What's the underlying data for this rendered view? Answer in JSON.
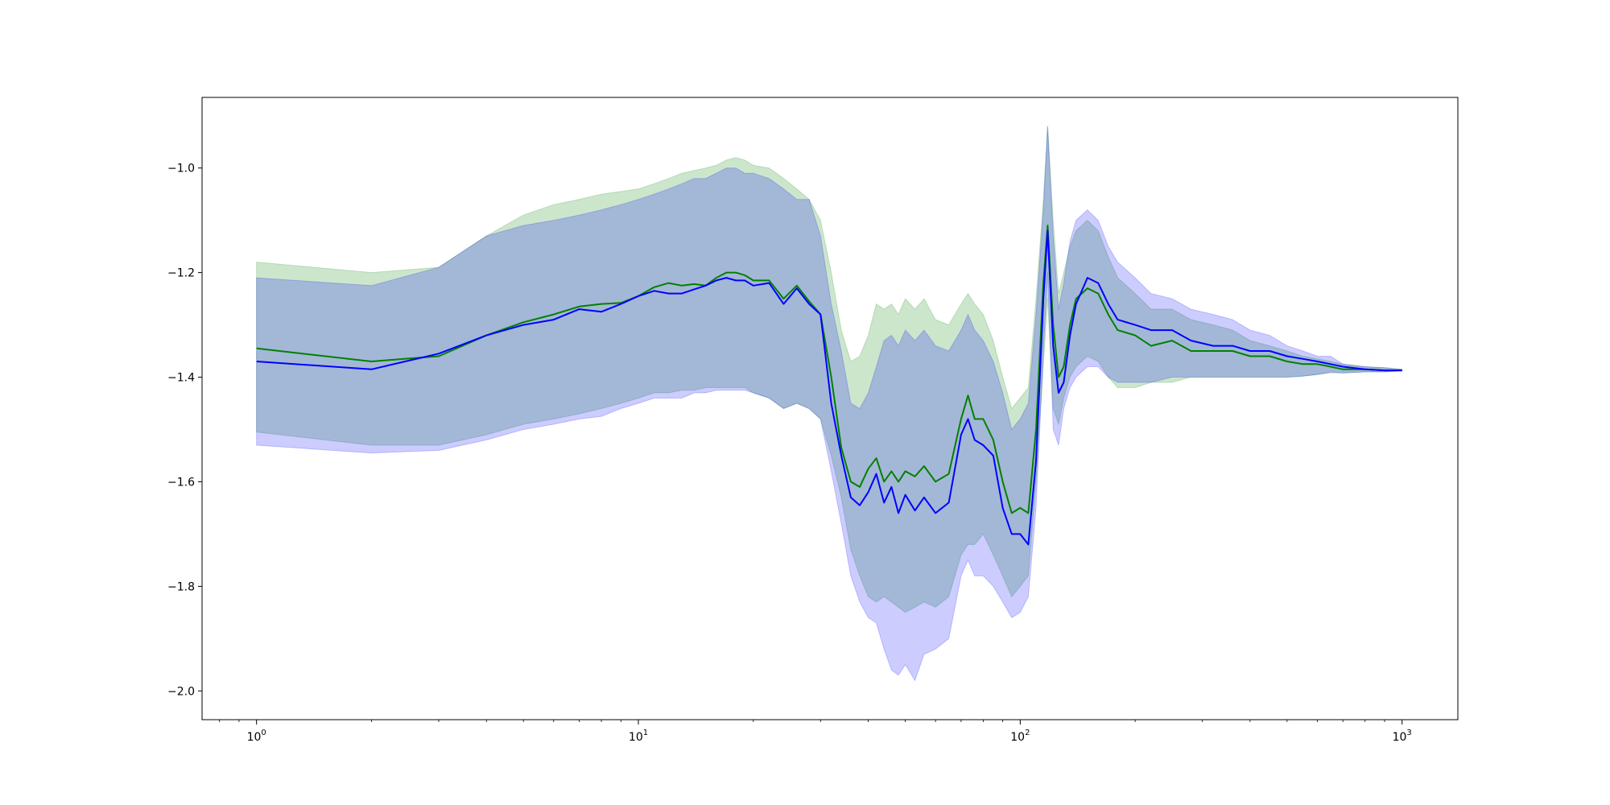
{
  "chart_data": {
    "type": "line",
    "title": "",
    "xlabel": "",
    "ylabel": "",
    "x_scale": "log",
    "xlim": [
      0.72,
      1400
    ],
    "ylim": [
      -2.055,
      -0.865
    ],
    "grid": false,
    "y_ticks": [
      -2.0,
      -1.8,
      -1.6,
      -1.4,
      -1.2,
      -1.0
    ],
    "y_tick_labels": [
      "−2.0",
      "−1.8",
      "−1.6",
      "−1.4",
      "−1.2",
      "−1.0"
    ],
    "x_ticks": [
      {
        "value": 1,
        "base": "10",
        "exp": "0"
      },
      {
        "value": 10,
        "base": "10",
        "exp": "1"
      },
      {
        "value": 100,
        "base": "10",
        "exp": "2"
      },
      {
        "value": 1000,
        "base": "10",
        "exp": "3"
      }
    ],
    "x": [
      1,
      2,
      3,
      4,
      5,
      6,
      7,
      8,
      9,
      10,
      11,
      12,
      13,
      14,
      15,
      16,
      17,
      18,
      19,
      20,
      22,
      24,
      26,
      28,
      30,
      32,
      34,
      36,
      38,
      40,
      42,
      44,
      46,
      48,
      50,
      53,
      56,
      60,
      65,
      70,
      73,
      76,
      80,
      85,
      90,
      95,
      100,
      105,
      110,
      115,
      118,
      122,
      126,
      130,
      135,
      140,
      150,
      160,
      170,
      180,
      200,
      220,
      250,
      280,
      320,
      360,
      400,
      450,
      500,
      550,
      600,
      650,
      700,
      800,
      900,
      1000
    ],
    "series": [
      {
        "color": "#008000",
        "band_color": "#008000",
        "band_opacity": 0.2,
        "values": [
          -1.345,
          -1.37,
          -1.36,
          -1.32,
          -1.295,
          -1.28,
          -1.265,
          -1.26,
          -1.258,
          -1.245,
          -1.228,
          -1.22,
          -1.225,
          -1.222,
          -1.225,
          -1.21,
          -1.2,
          -1.2,
          -1.205,
          -1.215,
          -1.215,
          -1.25,
          -1.225,
          -1.255,
          -1.28,
          -1.4,
          -1.535,
          -1.6,
          -1.61,
          -1.575,
          -1.555,
          -1.6,
          -1.58,
          -1.6,
          -1.58,
          -1.59,
          -1.57,
          -1.6,
          -1.585,
          -1.48,
          -1.435,
          -1.48,
          -1.48,
          -1.52,
          -1.6,
          -1.66,
          -1.65,
          -1.66,
          -1.5,
          -1.22,
          -1.11,
          -1.3,
          -1.4,
          -1.38,
          -1.3,
          -1.25,
          -1.23,
          -1.24,
          -1.28,
          -1.31,
          -1.32,
          -1.34,
          -1.33,
          -1.35,
          -1.35,
          -1.35,
          -1.36,
          -1.36,
          -1.37,
          -1.375,
          -1.375,
          -1.38,
          -1.385,
          -1.385,
          -1.387,
          -1.387
        ],
        "lower": [
          -1.505,
          -1.53,
          -1.53,
          -1.51,
          -1.49,
          -1.48,
          -1.47,
          -1.46,
          -1.45,
          -1.44,
          -1.43,
          -1.43,
          -1.425,
          -1.425,
          -1.42,
          -1.42,
          -1.42,
          -1.42,
          -1.42,
          -1.43,
          -1.44,
          -1.46,
          -1.45,
          -1.46,
          -1.48,
          -1.55,
          -1.63,
          -1.73,
          -1.78,
          -1.82,
          -1.83,
          -1.82,
          -1.83,
          -1.84,
          -1.85,
          -1.84,
          -1.83,
          -1.84,
          -1.82,
          -1.74,
          -1.72,
          -1.72,
          -1.7,
          -1.74,
          -1.78,
          -1.82,
          -1.8,
          -1.78,
          -1.6,
          -1.38,
          -1.25,
          -1.46,
          -1.49,
          -1.44,
          -1.4,
          -1.38,
          -1.36,
          -1.37,
          -1.4,
          -1.42,
          -1.42,
          -1.41,
          -1.41,
          -1.4,
          -1.4,
          -1.4,
          -1.4,
          -1.4,
          -1.4,
          -1.398,
          -1.395,
          -1.392,
          -1.392,
          -1.39,
          -1.39,
          -1.388
        ],
        "upper": [
          -1.18,
          -1.2,
          -1.19,
          -1.13,
          -1.09,
          -1.07,
          -1.06,
          -1.05,
          -1.045,
          -1.04,
          -1.03,
          -1.02,
          -1.01,
          -1.005,
          -1.0,
          -0.995,
          -0.985,
          -0.98,
          -0.985,
          -0.995,
          -1.0,
          -1.02,
          -1.04,
          -1.06,
          -1.1,
          -1.2,
          -1.31,
          -1.37,
          -1.36,
          -1.32,
          -1.26,
          -1.27,
          -1.26,
          -1.28,
          -1.25,
          -1.27,
          -1.25,
          -1.29,
          -1.3,
          -1.26,
          -1.24,
          -1.26,
          -1.28,
          -1.33,
          -1.4,
          -1.46,
          -1.44,
          -1.42,
          -1.25,
          -1.06,
          -0.92,
          -1.1,
          -1.24,
          -1.2,
          -1.15,
          -1.12,
          -1.1,
          -1.12,
          -1.17,
          -1.21,
          -1.24,
          -1.27,
          -1.27,
          -1.29,
          -1.3,
          -1.31,
          -1.33,
          -1.34,
          -1.35,
          -1.36,
          -1.365,
          -1.37,
          -1.375,
          -1.38,
          -1.382,
          -1.385
        ]
      },
      {
        "color": "#0000ff",
        "band_color": "#0000ff",
        "band_opacity": 0.2,
        "values": [
          -1.37,
          -1.385,
          -1.355,
          -1.32,
          -1.3,
          -1.29,
          -1.27,
          -1.275,
          -1.26,
          -1.245,
          -1.235,
          -1.24,
          -1.24,
          -1.232,
          -1.225,
          -1.215,
          -1.21,
          -1.215,
          -1.215,
          -1.225,
          -1.22,
          -1.26,
          -1.23,
          -1.26,
          -1.28,
          -1.45,
          -1.55,
          -1.63,
          -1.645,
          -1.62,
          -1.585,
          -1.64,
          -1.61,
          -1.66,
          -1.625,
          -1.655,
          -1.63,
          -1.66,
          -1.64,
          -1.51,
          -1.48,
          -1.52,
          -1.53,
          -1.55,
          -1.65,
          -1.7,
          -1.7,
          -1.72,
          -1.56,
          -1.25,
          -1.12,
          -1.34,
          -1.43,
          -1.41,
          -1.32,
          -1.26,
          -1.21,
          -1.22,
          -1.26,
          -1.29,
          -1.3,
          -1.31,
          -1.31,
          -1.33,
          -1.34,
          -1.34,
          -1.35,
          -1.35,
          -1.36,
          -1.365,
          -1.37,
          -1.375,
          -1.38,
          -1.385,
          -1.387,
          -1.387
        ],
        "lower": [
          -1.53,
          -1.545,
          -1.54,
          -1.52,
          -1.5,
          -1.49,
          -1.48,
          -1.475,
          -1.46,
          -1.45,
          -1.44,
          -1.44,
          -1.44,
          -1.43,
          -1.43,
          -1.425,
          -1.425,
          -1.425,
          -1.425,
          -1.43,
          -1.44,
          -1.46,
          -1.45,
          -1.46,
          -1.48,
          -1.58,
          -1.68,
          -1.78,
          -1.83,
          -1.86,
          -1.87,
          -1.92,
          -1.96,
          -1.97,
          -1.95,
          -1.98,
          -1.93,
          -1.92,
          -1.9,
          -1.78,
          -1.75,
          -1.78,
          -1.78,
          -1.8,
          -1.83,
          -1.86,
          -1.85,
          -1.82,
          -1.65,
          -1.35,
          -1.2,
          -1.5,
          -1.53,
          -1.46,
          -1.42,
          -1.4,
          -1.38,
          -1.38,
          -1.4,
          -1.41,
          -1.41,
          -1.41,
          -1.4,
          -1.4,
          -1.4,
          -1.4,
          -1.4,
          -1.4,
          -1.4,
          -1.398,
          -1.395,
          -1.39,
          -1.392,
          -1.39,
          -1.39,
          -1.388
        ],
        "upper": [
          -1.21,
          -1.225,
          -1.19,
          -1.13,
          -1.11,
          -1.1,
          -1.09,
          -1.08,
          -1.07,
          -1.06,
          -1.05,
          -1.04,
          -1.03,
          -1.02,
          -1.02,
          -1.01,
          -1.0,
          -1.0,
          -1.01,
          -1.01,
          -1.02,
          -1.04,
          -1.06,
          -1.06,
          -1.13,
          -1.26,
          -1.35,
          -1.45,
          -1.46,
          -1.43,
          -1.38,
          -1.33,
          -1.32,
          -1.34,
          -1.31,
          -1.33,
          -1.31,
          -1.34,
          -1.35,
          -1.31,
          -1.28,
          -1.31,
          -1.33,
          -1.37,
          -1.43,
          -1.5,
          -1.48,
          -1.45,
          -1.28,
          -1.08,
          -0.92,
          -1.13,
          -1.27,
          -1.22,
          -1.14,
          -1.1,
          -1.08,
          -1.1,
          -1.15,
          -1.18,
          -1.21,
          -1.24,
          -1.25,
          -1.27,
          -1.28,
          -1.29,
          -1.31,
          -1.32,
          -1.34,
          -1.35,
          -1.36,
          -1.36,
          -1.375,
          -1.38,
          -1.382,
          -1.385
        ]
      }
    ]
  }
}
